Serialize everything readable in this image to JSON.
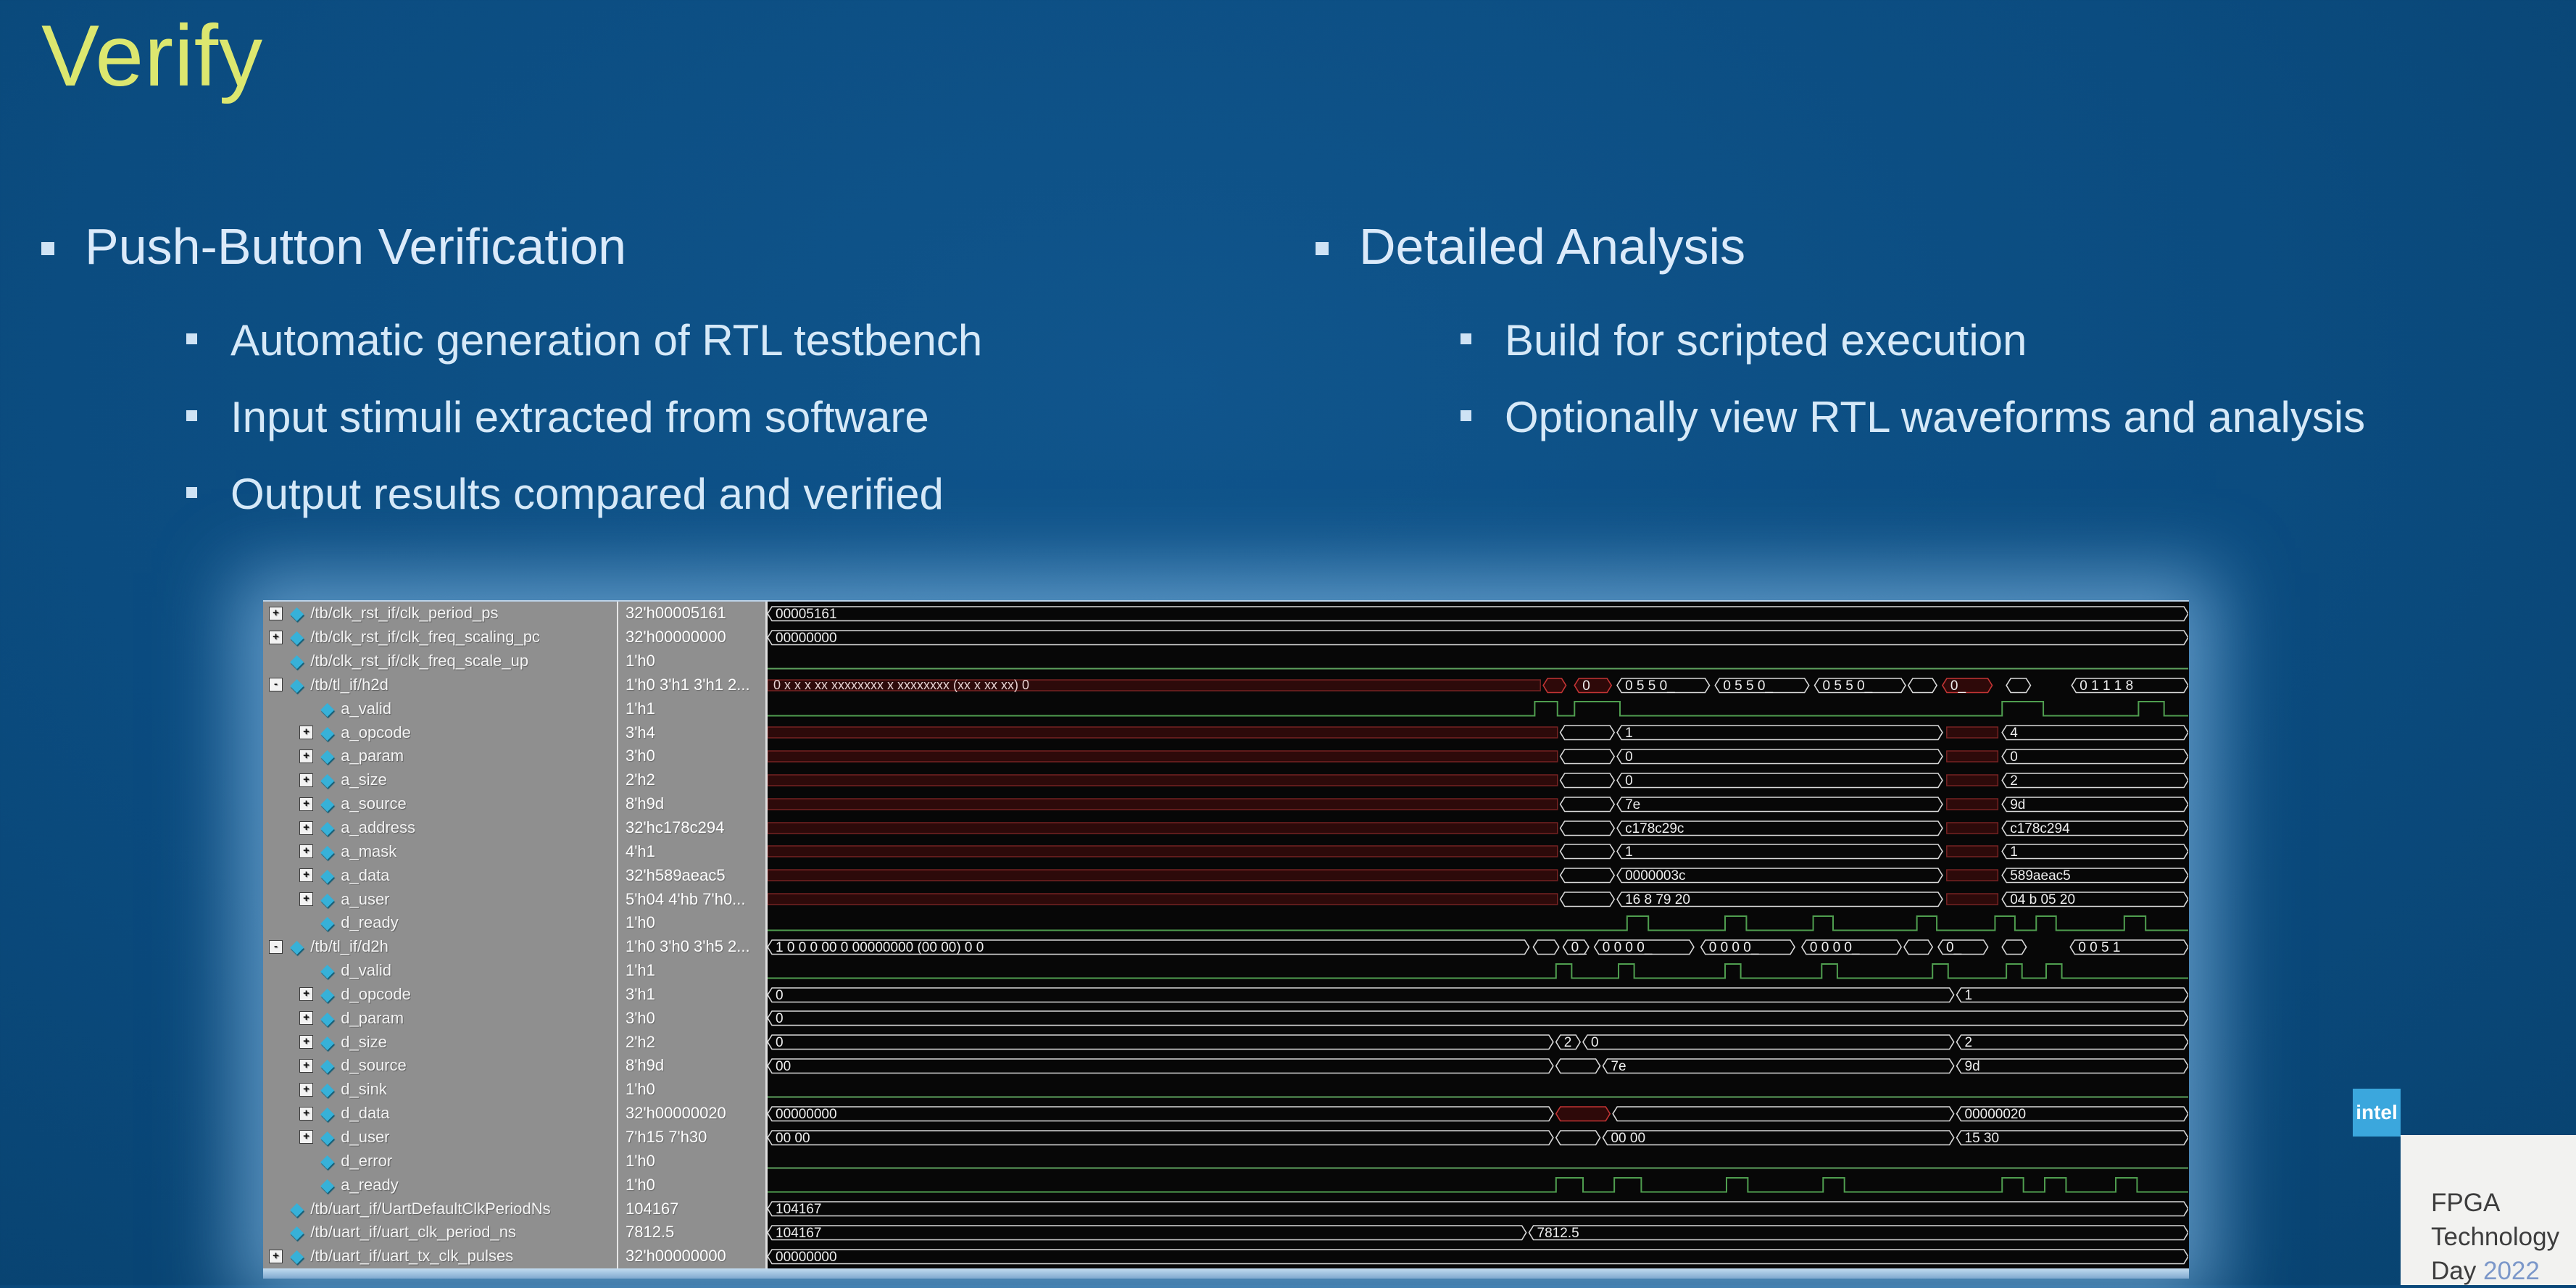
{
  "slide": {
    "title": "Verify",
    "colors": {
      "background": "#0b4c80",
      "title_text": "#dce76f",
      "body_text": "#d6e9f8",
      "intel_logo_blue": "#3ba7dd",
      "year_blue": "#7b97c9",
      "cursor_yellow": "#e5d34a",
      "wave_green": "#55a055",
      "wave_red": "#c23434"
    },
    "left": {
      "heading": "Push-Button Verification",
      "items": [
        "Automatic generation of RTL testbench",
        "Input stimuli extracted from software",
        "Output results compared and verified"
      ]
    },
    "right": {
      "heading": "Detailed Analysis",
      "items": [
        "Build for scripted execution",
        "Optionally view RTL waveforms and analysis"
      ]
    },
    "footer": {
      "logo": "intel",
      "event_lines": [
        "FPGA",
        "Technology",
        "Day"
      ],
      "year": "2022"
    }
  },
  "waveform": {
    "cursor_pct": 96.4,
    "gridlines_pct": [
      7.0,
      13.7,
      20.5,
      27.3,
      34.1,
      40.9,
      47.7,
      54.5,
      61.3,
      68.1,
      74.9,
      81.7,
      88.5,
      95.3
    ],
    "rows": [
      {
        "name": "/tb/clk_rst_if/clk_period_ps",
        "value": "32'h00005161",
        "depth": 0,
        "expand": "+",
        "wave": [
          {
            "t": "bus",
            "a": 0,
            "b": 100,
            "l": "00005161"
          }
        ]
      },
      {
        "name": "/tb/clk_rst_if/clk_freq_scaling_pc",
        "value": "32'h00000000",
        "depth": 0,
        "expand": "+",
        "wave": [
          {
            "t": "bus",
            "a": 0,
            "b": 100,
            "l": "00000000"
          }
        ]
      },
      {
        "name": "/tb/clk_rst_if/clk_freq_scale_up",
        "value": "1'h0",
        "depth": 0,
        "expand": "",
        "wave": [
          {
            "t": "low",
            "a": 0,
            "b": 100
          }
        ]
      },
      {
        "name": "/tb/tl_if/h2d",
        "value": "1'h0 3'h1 3'h1 2...",
        "depth": 0,
        "expand": "-",
        "wave": [
          {
            "t": "x",
            "a": 0,
            "b": 54.4,
            "l": "0 x x x xx xxxxxxxx x xxxxxxxx (xx x xx xx) 0"
          },
          {
            "t": "rbox",
            "a": 54.6,
            "b": 56.2,
            "l": ""
          },
          {
            "t": "rbox",
            "a": 56.8,
            "b": 59.4,
            "l": "0"
          },
          {
            "t": "bus",
            "a": 59.8,
            "b": 66.3,
            "l": "0 5 5 0_"
          },
          {
            "t": "bus",
            "a": 66.7,
            "b": 73.3,
            "l": "0 5 5 0_"
          },
          {
            "t": "bus",
            "a": 73.7,
            "b": 80.1,
            "l": "0 5 5 0_"
          },
          {
            "t": "bus",
            "a": 80.3,
            "b": 82.3,
            "l": ""
          },
          {
            "t": "rbox",
            "a": 82.7,
            "b": 86.2,
            "l": "0_"
          },
          {
            "t": "bus",
            "a": 87.2,
            "b": 88.9,
            "l": ""
          },
          {
            "t": "bus",
            "a": 91.8,
            "b": 100,
            "l": "0 1 1 1 8"
          }
        ]
      },
      {
        "name": "a_valid",
        "value": "1'h1",
        "depth": 1,
        "expand": "",
        "wave": [
          {
            "t": "pul",
            "hi": [
              [
                54.0,
                55.6
              ],
              [
                56.8,
                60.0
              ],
              [
                86.9,
                89.8
              ],
              [
                96.5,
                98.3
              ]
            ]
          }
        ]
      },
      {
        "name": "a_opcode",
        "value": "3'h4",
        "depth": 1,
        "expand": "+",
        "wave": [
          {
            "t": "x",
            "a": 0,
            "b": 55.6
          },
          {
            "t": "bus",
            "a": 55.8,
            "b": 59.6,
            "l": ""
          },
          {
            "t": "bus",
            "a": 59.8,
            "b": 82.7,
            "l": "1"
          },
          {
            "t": "x",
            "a": 83.0,
            "b": 86.6
          },
          {
            "t": "bus",
            "a": 86.9,
            "b": 100,
            "l": "4"
          }
        ]
      },
      {
        "name": "a_param",
        "value": "3'h0",
        "depth": 1,
        "expand": "+",
        "wave": [
          {
            "t": "x",
            "a": 0,
            "b": 55.6
          },
          {
            "t": "bus",
            "a": 55.8,
            "b": 59.6,
            "l": ""
          },
          {
            "t": "bus",
            "a": 59.8,
            "b": 82.7,
            "l": "0"
          },
          {
            "t": "x",
            "a": 83.0,
            "b": 86.6
          },
          {
            "t": "bus",
            "a": 86.9,
            "b": 100,
            "l": "0"
          }
        ]
      },
      {
        "name": "a_size",
        "value": "2'h2",
        "depth": 1,
        "expand": "+",
        "wave": [
          {
            "t": "x",
            "a": 0,
            "b": 55.6
          },
          {
            "t": "bus",
            "a": 55.8,
            "b": 59.6,
            "l": ""
          },
          {
            "t": "bus",
            "a": 59.8,
            "b": 82.7,
            "l": "0"
          },
          {
            "t": "x",
            "a": 83.0,
            "b": 86.6
          },
          {
            "t": "bus",
            "a": 86.9,
            "b": 100,
            "l": "2"
          }
        ]
      },
      {
        "name": "a_source",
        "value": "8'h9d",
        "depth": 1,
        "expand": "+",
        "wave": [
          {
            "t": "x",
            "a": 0,
            "b": 55.6
          },
          {
            "t": "bus",
            "a": 55.8,
            "b": 59.6,
            "l": ""
          },
          {
            "t": "bus",
            "a": 59.8,
            "b": 82.7,
            "l": "7e"
          },
          {
            "t": "x",
            "a": 83.0,
            "b": 86.6
          },
          {
            "t": "bus",
            "a": 86.9,
            "b": 100,
            "l": "9d"
          }
        ]
      },
      {
        "name": "a_address",
        "value": "32'hc178c294",
        "depth": 1,
        "expand": "+",
        "wave": [
          {
            "t": "x",
            "a": 0,
            "b": 55.6
          },
          {
            "t": "bus",
            "a": 55.8,
            "b": 59.6,
            "l": ""
          },
          {
            "t": "bus",
            "a": 59.8,
            "b": 82.7,
            "l": "c178c29c"
          },
          {
            "t": "x",
            "a": 83.0,
            "b": 86.6
          },
          {
            "t": "bus",
            "a": 86.9,
            "b": 100,
            "l": "c178c294"
          }
        ]
      },
      {
        "name": "a_mask",
        "value": "4'h1",
        "depth": 1,
        "expand": "+",
        "wave": [
          {
            "t": "x",
            "a": 0,
            "b": 55.6
          },
          {
            "t": "bus",
            "a": 55.8,
            "b": 59.6,
            "l": ""
          },
          {
            "t": "bus",
            "a": 59.8,
            "b": 82.7,
            "l": "1"
          },
          {
            "t": "x",
            "a": 83.0,
            "b": 86.6
          },
          {
            "t": "bus",
            "a": 86.9,
            "b": 100,
            "l": "1"
          }
        ]
      },
      {
        "name": "a_data",
        "value": "32'h589aeac5",
        "depth": 1,
        "expand": "+",
        "wave": [
          {
            "t": "x",
            "a": 0,
            "b": 55.6
          },
          {
            "t": "bus",
            "a": 55.8,
            "b": 59.6,
            "l": ""
          },
          {
            "t": "bus",
            "a": 59.8,
            "b": 82.7,
            "l": "0000003c"
          },
          {
            "t": "x",
            "a": 83.0,
            "b": 86.6
          },
          {
            "t": "bus",
            "a": 86.9,
            "b": 100,
            "l": "589aeac5"
          }
        ]
      },
      {
        "name": "a_user",
        "value": "5'h04 4'hb 7'h0...",
        "depth": 1,
        "expand": "+",
        "wave": [
          {
            "t": "x",
            "a": 0,
            "b": 55.6
          },
          {
            "t": "bus",
            "a": 55.8,
            "b": 59.6,
            "l": ""
          },
          {
            "t": "bus",
            "a": 59.8,
            "b": 82.7,
            "l": "16 8 79 20"
          },
          {
            "t": "x",
            "a": 83.0,
            "b": 86.6
          },
          {
            "t": "bus",
            "a": 86.9,
            "b": 100,
            "l": "04 b 05 20"
          }
        ]
      },
      {
        "name": "d_ready",
        "value": "1'h0",
        "depth": 1,
        "expand": "",
        "wave": [
          {
            "t": "pul",
            "hi": [
              [
                60.5,
                62.0
              ],
              [
                67.4,
                68.9
              ],
              [
                73.6,
                75.0
              ],
              [
                80.9,
                82.3
              ],
              [
                86.4,
                87.8
              ],
              [
                89.3,
                90.7
              ],
              [
                95.5,
                97.0
              ]
            ]
          }
        ]
      },
      {
        "name": "/tb/tl_if/d2h",
        "value": "1'h0 3'h0 3'h5 2...",
        "depth": 0,
        "expand": "-",
        "wave": [
          {
            "t": "bus",
            "a": 0,
            "b": 53.6,
            "l": "1 0 0 0 00 0 00000000 (00 00) 0 0"
          },
          {
            "t": "bus",
            "a": 53.9,
            "b": 55.7,
            "l": ""
          },
          {
            "t": "bus",
            "a": 56.0,
            "b": 57.8,
            "l": "0_"
          },
          {
            "t": "bus",
            "a": 58.2,
            "b": 65.2,
            "l": "0 0 0 0_"
          },
          {
            "t": "bus",
            "a": 65.7,
            "b": 72.3,
            "l": "0 0 0 0_"
          },
          {
            "t": "bus",
            "a": 72.8,
            "b": 79.8,
            "l": "0 0 0 0_"
          },
          {
            "t": "bus",
            "a": 80.0,
            "b": 82.0,
            "l": ""
          },
          {
            "t": "bus",
            "a": 82.4,
            "b": 85.9,
            "l": "0_"
          },
          {
            "t": "bus",
            "a": 86.9,
            "b": 88.6,
            "l": ""
          },
          {
            "t": "bus",
            "a": 91.7,
            "b": 100,
            "l": "0 0 5 1"
          }
        ]
      },
      {
        "name": "d_valid",
        "value": "1'h1",
        "depth": 1,
        "expand": "",
        "wave": [
          {
            "t": "pul",
            "hi": [
              [
                55.5,
                56.6
              ],
              [
                59.9,
                61.0
              ],
              [
                67.4,
                68.5
              ],
              [
                74.2,
                75.3
              ],
              [
                82.0,
                83.1
              ],
              [
                87.2,
                88.3
              ],
              [
                90.0,
                91.1
              ]
            ]
          }
        ]
      },
      {
        "name": "d_opcode",
        "value": "3'h1",
        "depth": 1,
        "expand": "+",
        "wave": [
          {
            "t": "bus",
            "a": 0,
            "b": 83.5,
            "l": "0"
          },
          {
            "t": "bus",
            "a": 83.7,
            "b": 100,
            "l": "1"
          }
        ]
      },
      {
        "name": "d_param",
        "value": "3'h0",
        "depth": 1,
        "expand": "+",
        "wave": [
          {
            "t": "bus",
            "a": 0,
            "b": 100,
            "l": "0"
          }
        ]
      },
      {
        "name": "d_size",
        "value": "2'h2",
        "depth": 1,
        "expand": "+",
        "wave": [
          {
            "t": "bus",
            "a": 0,
            "b": 55.3,
            "l": "0"
          },
          {
            "t": "bus",
            "a": 55.5,
            "b": 57.2,
            "l": "2"
          },
          {
            "t": "bus",
            "a": 57.4,
            "b": 83.5,
            "l": "0"
          },
          {
            "t": "bus",
            "a": 83.7,
            "b": 100,
            "l": "2"
          }
        ]
      },
      {
        "name": "d_source",
        "value": "8'h9d",
        "depth": 1,
        "expand": "+",
        "wave": [
          {
            "t": "bus",
            "a": 0,
            "b": 55.3,
            "l": "00"
          },
          {
            "t": "bus",
            "a": 55.5,
            "b": 58.6,
            "l": ""
          },
          {
            "t": "bus",
            "a": 58.8,
            "b": 83.5,
            "l": "7e"
          },
          {
            "t": "bus",
            "a": 83.7,
            "b": 100,
            "l": "9d"
          }
        ]
      },
      {
        "name": "d_sink",
        "value": "1'h0",
        "depth": 1,
        "expand": "+",
        "wave": [
          {
            "t": "low",
            "a": 0,
            "b": 100
          }
        ]
      },
      {
        "name": "d_data",
        "value": "32'h00000020",
        "depth": 1,
        "expand": "+",
        "wave": [
          {
            "t": "bus",
            "a": 0,
            "b": 55.3,
            "l": "00000000"
          },
          {
            "t": "rbox",
            "a": 55.5,
            "b": 59.3,
            "l": ""
          },
          {
            "t": "bus",
            "a": 59.5,
            "b": 83.5,
            "l": ""
          },
          {
            "t": "bus",
            "a": 83.7,
            "b": 100,
            "l": "00000020"
          }
        ]
      },
      {
        "name": "d_user",
        "value": "7'h15 7'h30",
        "depth": 1,
        "expand": "+",
        "wave": [
          {
            "t": "bus",
            "a": 0,
            "b": 55.3,
            "l": "00 00"
          },
          {
            "t": "bus",
            "a": 55.5,
            "b": 58.6,
            "l": ""
          },
          {
            "t": "bus",
            "a": 58.8,
            "b": 83.5,
            "l": "00 00"
          },
          {
            "t": "bus",
            "a": 83.7,
            "b": 100,
            "l": "15 30"
          }
        ]
      },
      {
        "name": "d_error",
        "value": "1'h0",
        "depth": 1,
        "expand": "",
        "wave": [
          {
            "t": "low",
            "a": 0,
            "b": 100
          }
        ]
      },
      {
        "name": "a_ready",
        "value": "1'h0",
        "depth": 1,
        "expand": "",
        "wave": [
          {
            "t": "pul",
            "hi": [
              [
                55.5,
                57.4
              ],
              [
                59.6,
                61.5
              ],
              [
                67.5,
                69.0
              ],
              [
                74.3,
                75.8
              ],
              [
                86.9,
                88.4
              ],
              [
                89.9,
                91.4
              ],
              [
                94.9,
                96.4
              ]
            ]
          }
        ]
      },
      {
        "name": "/tb/uart_if/UartDefaultClkPeriodNs",
        "value": "104167",
        "depth": 0,
        "expand": "",
        "wave": [
          {
            "t": "bus",
            "a": 0,
            "b": 100,
            "l": "104167"
          }
        ]
      },
      {
        "name": "/tb/uart_if/uart_clk_period_ns",
        "value": "7812.5",
        "depth": 0,
        "expand": "",
        "wave": [
          {
            "t": "bus",
            "a": 0,
            "b": 53.4,
            "l": "104167"
          },
          {
            "t": "bus",
            "a": 53.6,
            "b": 100,
            "l": "7812.5"
          }
        ]
      },
      {
        "name": "/tb/uart_if/uart_tx_clk_pulses",
        "value": "32'h00000000",
        "depth": 0,
        "expand": "+",
        "wave": [
          {
            "t": "bus",
            "a": 0,
            "b": 100,
            "l": "00000000"
          }
        ]
      }
    ]
  }
}
